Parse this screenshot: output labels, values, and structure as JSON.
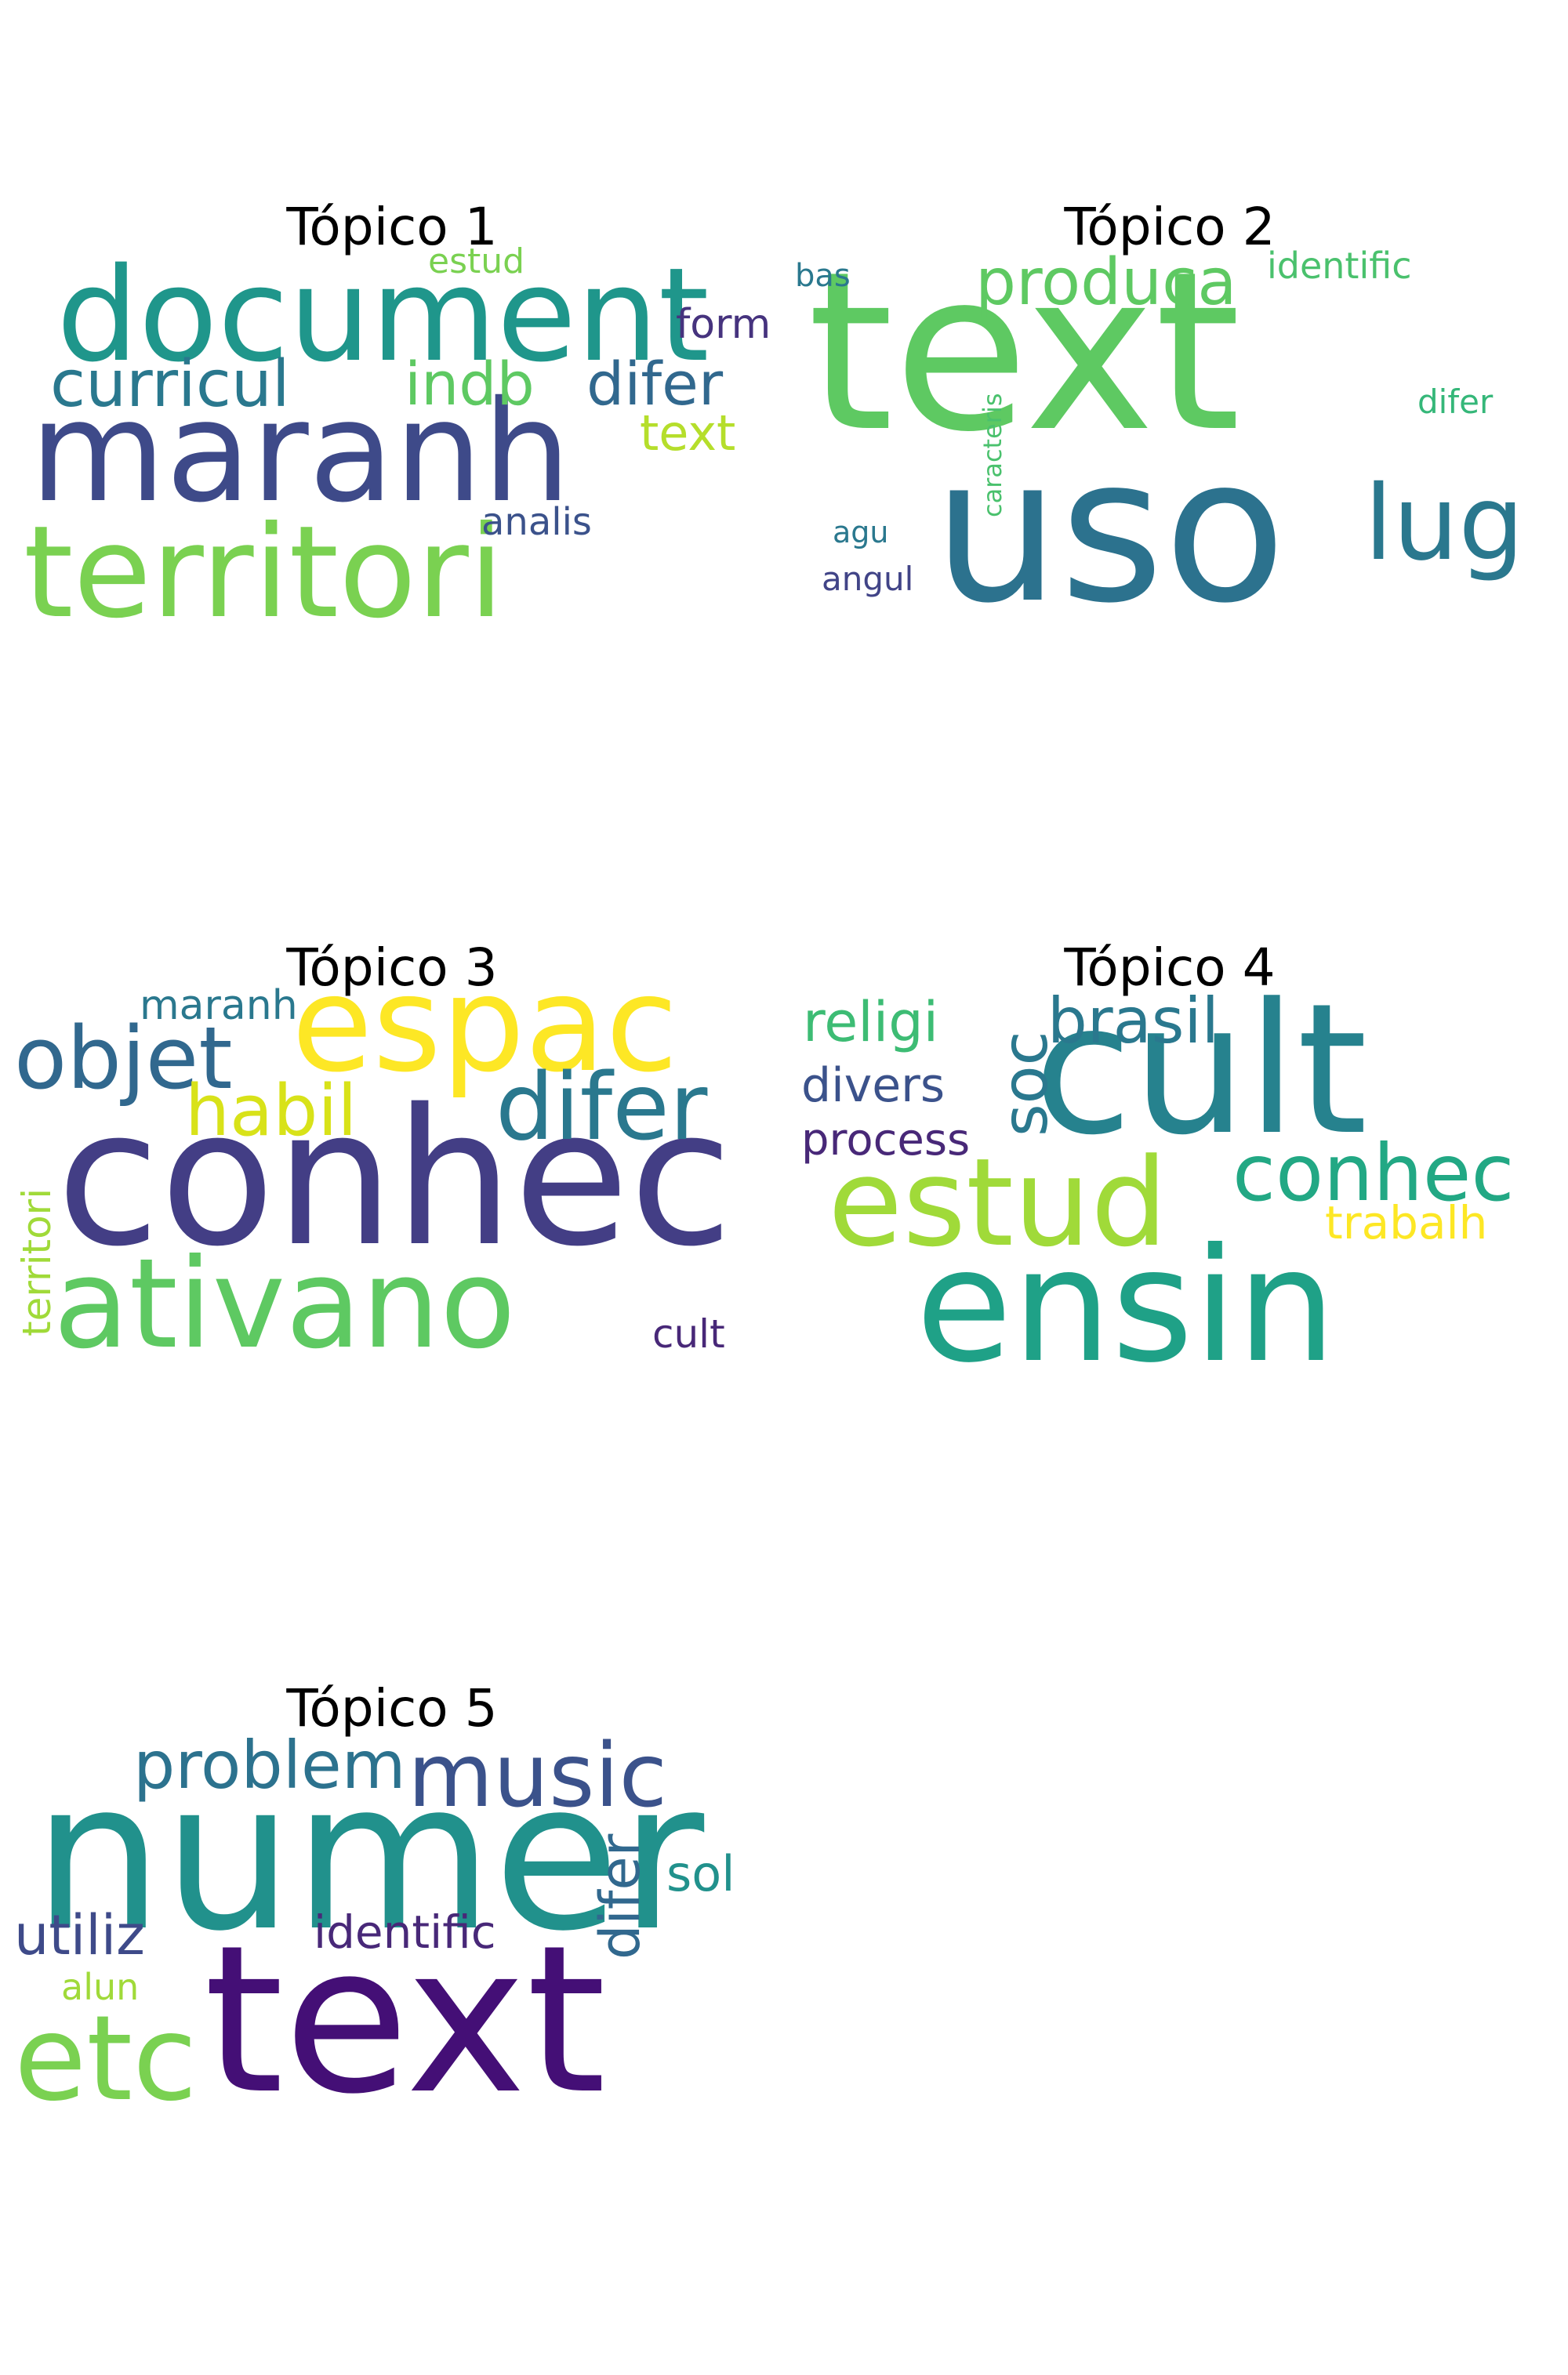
{
  "topics": [
    {
      "title": "Tópico 1",
      "words": [
        {
          "text": "document",
          "color": "#1f968b"
        },
        {
          "text": "maranh",
          "color": "#3e4a89"
        },
        {
          "text": "territori",
          "color": "#7ad151"
        },
        {
          "text": "curricul",
          "color": "#2a788e"
        },
        {
          "text": "indb",
          "color": "#5ec962"
        },
        {
          "text": "difer",
          "color": "#31688e"
        },
        {
          "text": "estud",
          "color": "#7ad151"
        },
        {
          "text": "form",
          "color": "#46337e"
        },
        {
          "text": "text",
          "color": "#b5de2b"
        },
        {
          "text": "analis",
          "color": "#3b528b"
        }
      ]
    },
    {
      "title": "Tópico 2",
      "words": [
        {
          "text": "text",
          "color": "#5ec962"
        },
        {
          "text": "uso",
          "color": "#2c728e"
        },
        {
          "text": "produca",
          "color": "#5ec962"
        },
        {
          "text": "identific",
          "color": "#4ac16d"
        },
        {
          "text": "bas",
          "color": "#2a788e"
        },
        {
          "text": "lug",
          "color": "#2a788e"
        },
        {
          "text": "difer",
          "color": "#35b779"
        },
        {
          "text": "caracteris",
          "color": "#4ac16d"
        },
        {
          "text": "agu",
          "color": "#2a788e"
        },
        {
          "text": "angul",
          "color": "#414487"
        }
      ]
    },
    {
      "title": "Tópico 3",
      "words": [
        {
          "text": "conhec",
          "color": "#433e85"
        },
        {
          "text": "espac",
          "color": "#fde725"
        },
        {
          "text": "objet",
          "color": "#31688e"
        },
        {
          "text": "maranh",
          "color": "#2a788e"
        },
        {
          "text": "difer",
          "color": "#2a788e"
        },
        {
          "text": "habil",
          "color": "#d8e219"
        },
        {
          "text": "ativano",
          "color": "#5ec962"
        },
        {
          "text": "territori",
          "color": "#a0da39"
        },
        {
          "text": "cult",
          "color": "#482878"
        }
      ]
    },
    {
      "title": "Tópico 4",
      "words": [
        {
          "text": "cult",
          "color": "#26828e"
        },
        {
          "text": "ensin",
          "color": "#1fa187"
        },
        {
          "text": "estud",
          "color": "#a0da39"
        },
        {
          "text": "conhec",
          "color": "#22a884"
        },
        {
          "text": "religi",
          "color": "#3dbc74"
        },
        {
          "text": "brasil",
          "color": "#2a788e"
        },
        {
          "text": "soc",
          "color": "#2a788e"
        },
        {
          "text": "divers",
          "color": "#3b528b"
        },
        {
          "text": "process",
          "color": "#482878"
        },
        {
          "text": "trabalh",
          "color": "#fde725"
        }
      ]
    },
    {
      "title": "Tópico 5",
      "words": [
        {
          "text": "numer",
          "color": "#21918c"
        },
        {
          "text": "text",
          "color": "#440f76"
        },
        {
          "text": "problem",
          "color": "#2c728e"
        },
        {
          "text": "music",
          "color": "#3b528b"
        },
        {
          "text": "difer",
          "color": "#31688e"
        },
        {
          "text": "sol",
          "color": "#21918c"
        },
        {
          "text": "utiliz",
          "color": "#3e4a89"
        },
        {
          "text": "identific",
          "color": "#482878"
        },
        {
          "text": "alun",
          "color": "#a0da39"
        },
        {
          "text": "etc",
          "color": "#7ad151"
        }
      ]
    }
  ]
}
